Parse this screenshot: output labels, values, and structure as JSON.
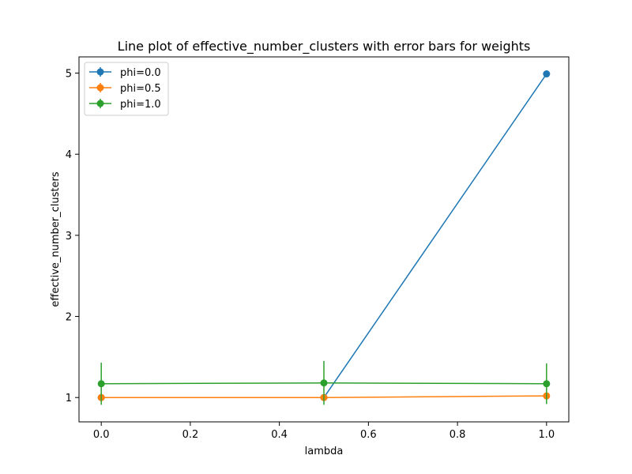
{
  "chart_data": {
    "type": "line",
    "title": "Line plot of effective_number_clusters with error bars for weights",
    "xlabel": "lambda",
    "ylabel": "effective_number_clusters",
    "xlim": [
      -0.05,
      1.05
    ],
    "ylim": [
      0.7,
      5.2
    ],
    "x_ticks": [
      0.0,
      0.2,
      0.4,
      0.6,
      0.8,
      1.0
    ],
    "x_tick_labels": [
      "0.0",
      "0.2",
      "0.4",
      "0.6",
      "0.8",
      "1.0"
    ],
    "y_ticks": [
      1,
      2,
      3,
      4,
      5
    ],
    "y_tick_labels": [
      "1",
      "2",
      "3",
      "4",
      "5"
    ],
    "grid": false,
    "legend_position": "upper-left",
    "series": [
      {
        "name": "phi=0.0",
        "color": "#1f77b4",
        "x": [
          0.0,
          0.5,
          1.0
        ],
        "y": [
          1.0,
          1.0,
          4.99
        ],
        "yerr": [
          0.0,
          0.0,
          0.0
        ]
      },
      {
        "name": "phi=0.5",
        "color": "#ff7f0e",
        "x": [
          0.0,
          0.5,
          1.0
        ],
        "y": [
          1.0,
          1.0,
          1.02
        ],
        "yerr": [
          0.0,
          0.0,
          0.02
        ]
      },
      {
        "name": "phi=1.0",
        "color": "#2ca02c",
        "x": [
          0.0,
          0.5,
          1.0
        ],
        "y": [
          1.17,
          1.18,
          1.17
        ],
        "yerr": [
          0.26,
          0.27,
          0.25
        ]
      }
    ]
  }
}
